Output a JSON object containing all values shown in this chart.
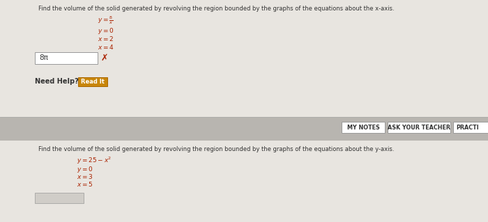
{
  "figsize": [
    7.0,
    3.19
  ],
  "dpi": 100,
  "bg_color": "#c8c5c0",
  "section1_bg": "#e8e5e0",
  "section_mid_bg": "#b8b5b0",
  "section2_bg": "#dedad5",
  "title1": "Find the volume of the solid generated by revolving the region bounded by the graphs of the equations about the x-axis.",
  "eq1_lines": [
    "y = 8/x",
    "y = 0",
    "x = 2",
    "x = 4"
  ],
  "answer1": "8π",
  "wrong_mark": "✗",
  "need_help_text": "Need Help?",
  "read_it_text": "Read It",
  "read_it_bg": "#c8860a",
  "my_notes_text": "MY NOTES",
  "ask_teacher_text": "ASK YOUR TEACHER",
  "practi_text": "PRACTI",
  "title2": "Find the volume of the solid generated by revolving the region bounded by the graphs of the equations about the y-axis.",
  "eq2_lines": [
    "y = 25 − x²",
    "y = 0",
    "x = 3",
    "x = 5"
  ],
  "red_color": "#aa2200",
  "dark_text": "#333333",
  "mid_text": "#555555",
  "btn_border": "#999999",
  "white": "#ffffff",
  "answer_box_color": "#f0ede8",
  "xlim": [
    0,
    700
  ],
  "ylim": [
    0,
    319
  ],
  "section1_height": 168,
  "mid_height": 34,
  "section2_y": 202
}
